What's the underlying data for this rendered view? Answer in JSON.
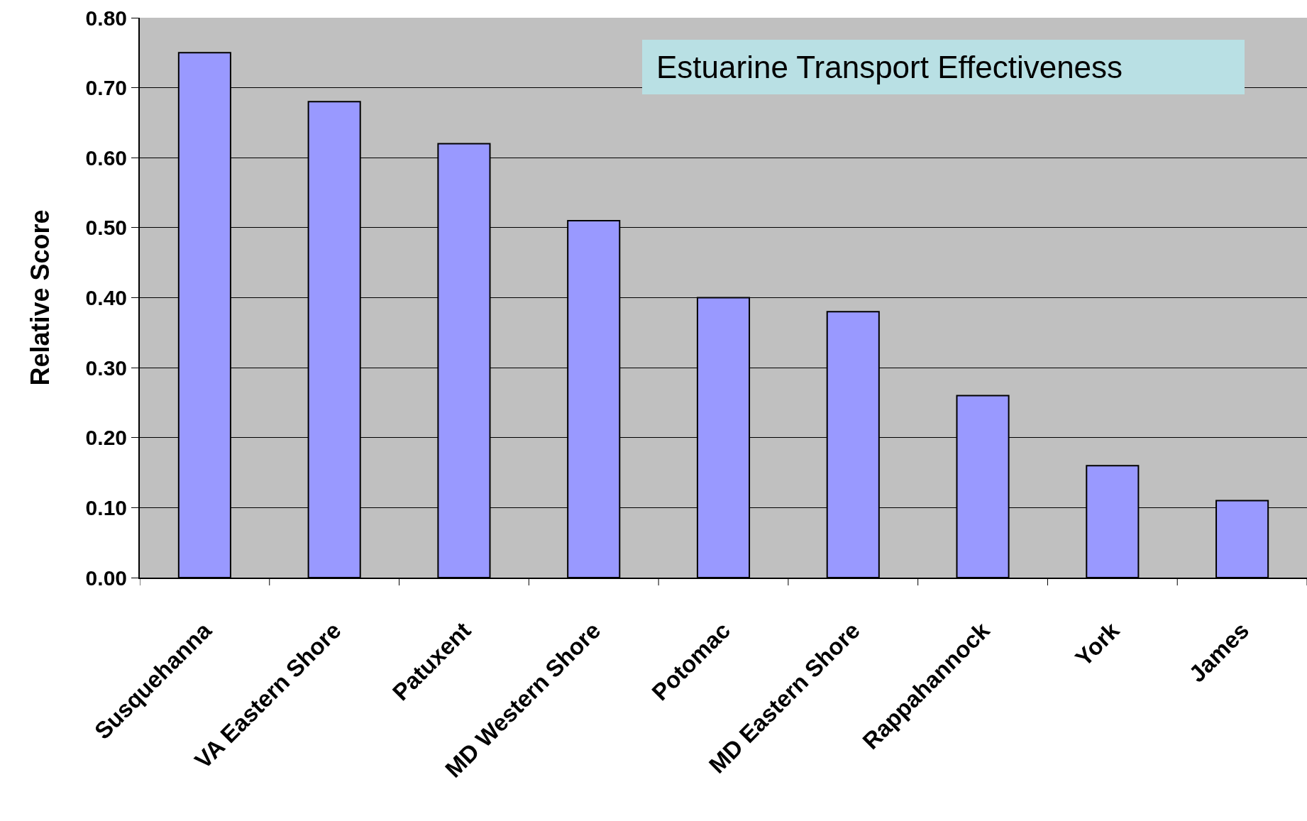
{
  "chart_data": {
    "type": "bar",
    "title": "Estuarine Transport Effectiveness",
    "ylabel": "Relative Score",
    "categories": [
      "Susquehanna",
      "VA Eastern Shore",
      "Patuxent",
      "MD Western Shore",
      "Potomac",
      "MD Eastern Shore",
      "Rappahannock",
      "York",
      "James"
    ],
    "values": [
      0.75,
      0.68,
      0.62,
      0.51,
      0.4,
      0.38,
      0.26,
      0.16,
      0.11
    ],
    "color": "#9999ff",
    "ylim": [
      0,
      0.8
    ],
    "yticks": [
      {
        "value": 0,
        "label": "0.00"
      },
      {
        "value": 0.1,
        "label": "0.10"
      },
      {
        "value": 0.2,
        "label": "0.20"
      },
      {
        "value": 0.3,
        "label": "0.30"
      },
      {
        "value": 0.4,
        "label": "0.40"
      },
      {
        "value": 0.5,
        "label": "0.50"
      },
      {
        "value": 0.6,
        "label": "0.60"
      },
      {
        "value": 0.7,
        "label": "0.70"
      },
      {
        "value": 0.8,
        "label": "0.80"
      }
    ],
    "grid": "y",
    "legend": false
  }
}
